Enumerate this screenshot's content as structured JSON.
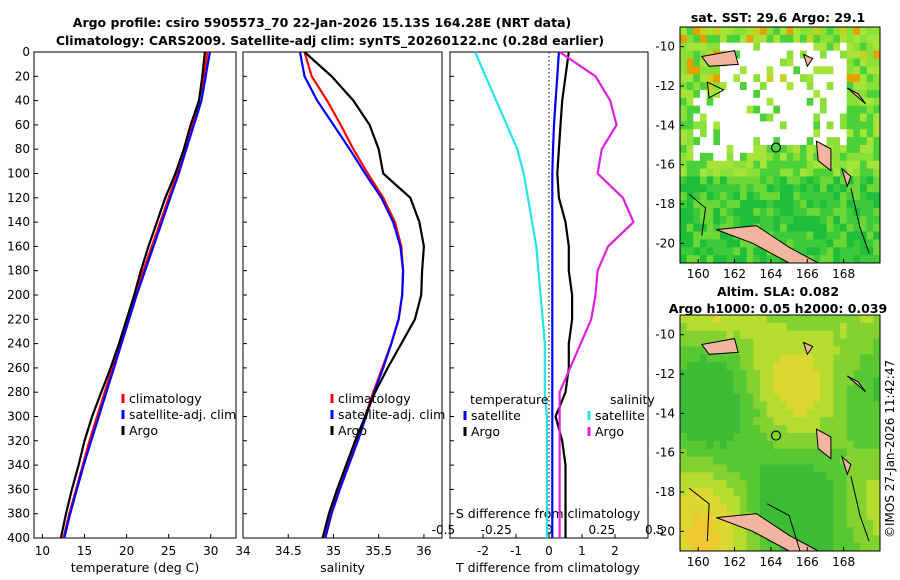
{
  "title": {
    "line1": "Argo profile: csiro 5905573_70 22-Jan-2026 15.13S 164.28E (NRT data)",
    "line2": "Climatology: CARS2009. Satellite-adj clim: synTS_20260122.nc (0.28d earlier)"
  },
  "map_titles": {
    "sst": "sat. SST: 29.6 Argo: 29.1",
    "sla1": "Altim. SLA: 0.082",
    "sla2": "Argo h1000: 0.05 h2000: 0.039"
  },
  "timestamp": "©IMOS 27-Jan-2026 11:42:47",
  "legend": {
    "climatology": "climatology",
    "satellite_adj": "satellite-adj. clim",
    "argo": "Argo",
    "temperature": "temperature",
    "salinity": "salinity",
    "satellite": "satellite"
  },
  "colors": {
    "climatology": "#ff0000",
    "satellite": "#0000ff",
    "argo": "#000000",
    "sal_satellite": "#22e5e5",
    "sal_argo": "#e020e0"
  },
  "chart_data": [
    {
      "type": "line",
      "name": "temperature",
      "xlabel": "temperature (deg C)",
      "ylabel": "",
      "xlim": [
        9,
        33
      ],
      "ylim": [
        400,
        0
      ],
      "xticks": [
        10,
        15,
        20,
        25,
        30
      ],
      "yticks": [
        0,
        20,
        40,
        60,
        80,
        100,
        120,
        140,
        160,
        180,
        200,
        220,
        240,
        260,
        280,
        300,
        320,
        340,
        360,
        380,
        400
      ],
      "depth": [
        0,
        20,
        40,
        60,
        80,
        100,
        120,
        140,
        160,
        180,
        200,
        220,
        240,
        260,
        280,
        300,
        320,
        340,
        360,
        380,
        400
      ],
      "series": [
        {
          "name": "climatology",
          "values": [
            29.6,
            29.2,
            28.6,
            27.8,
            26.9,
            26.0,
            25.0,
            24.0,
            23.0,
            22.0,
            21.0,
            20.1,
            19.2,
            18.3,
            17.4,
            16.5,
            15.6,
            14.8,
            14.0,
            13.2,
            12.5
          ]
        },
        {
          "name": "satellite-adj. clim",
          "values": [
            29.9,
            29.4,
            28.9,
            28.0,
            27.1,
            26.2,
            25.2,
            24.2,
            23.2,
            22.2,
            21.2,
            20.3,
            19.4,
            18.5,
            17.6,
            16.7,
            15.8,
            14.9,
            14.1,
            13.3,
            12.6
          ]
        },
        {
          "name": "Argo",
          "values": [
            29.3,
            29.0,
            28.6,
            27.6,
            26.8,
            25.8,
            24.6,
            23.6,
            22.6,
            21.7,
            20.9,
            20.0,
            19.1,
            18.1,
            17.0,
            15.9,
            15.0,
            14.3,
            13.5,
            12.8,
            12.2
          ]
        }
      ]
    },
    {
      "type": "line",
      "name": "salinity",
      "xlabel": "salinity",
      "xlim": [
        34,
        36.2
      ],
      "ylim": [
        400,
        0
      ],
      "xticks": [
        34,
        34.5,
        35,
        35.5,
        36
      ],
      "xticklabels": [
        "34",
        "34.5",
        "35",
        "35.5",
        "36"
      ],
      "depth": [
        0,
        20,
        40,
        60,
        80,
        100,
        120,
        140,
        160,
        180,
        200,
        220,
        240,
        260,
        280,
        300,
        320,
        340,
        360,
        380,
        400
      ],
      "series": [
        {
          "name": "climatology",
          "values": [
            34.68,
            34.76,
            34.93,
            35.08,
            35.22,
            35.38,
            35.55,
            35.68,
            35.75,
            35.77,
            35.76,
            35.72,
            35.64,
            35.54,
            35.44,
            35.35,
            35.26,
            35.16,
            35.06,
            34.97,
            34.9
          ]
        },
        {
          "name": "satellite-adj. clim",
          "values": [
            34.63,
            34.68,
            34.82,
            35.0,
            35.18,
            35.35,
            35.53,
            35.66,
            35.74,
            35.77,
            35.76,
            35.72,
            35.64,
            35.55,
            35.45,
            35.36,
            35.27,
            35.17,
            35.07,
            34.98,
            34.91
          ]
        },
        {
          "name": "Argo",
          "values": [
            34.68,
            34.98,
            35.22,
            35.4,
            35.5,
            35.55,
            35.85,
            35.95,
            36.0,
            35.98,
            35.97,
            35.9,
            35.75,
            35.6,
            35.46,
            35.35,
            35.24,
            35.14,
            35.04,
            34.95,
            34.88
          ]
        }
      ]
    },
    {
      "type": "line",
      "name": "difference",
      "xlabel": "T difference from climatology",
      "top_xlabel": "S difference from climatology",
      "xlim": [
        -3,
        3
      ],
      "ylim": [
        400,
        0
      ],
      "xticks": [
        -2,
        -1,
        0,
        1,
        2
      ],
      "top_xticks": [
        -0.5,
        -0.25,
        0,
        0.25,
        0.5
      ],
      "top_xticklabels": [
        "-0.5",
        "-0.25",
        "0",
        "0.25",
        "0.5"
      ],
      "depth": [
        0,
        20,
        40,
        60,
        80,
        100,
        120,
        140,
        160,
        180,
        200,
        220,
        240,
        260,
        280,
        300,
        320,
        340,
        360,
        380,
        400
      ],
      "series": [
        {
          "name": "T satellite",
          "values": [
            0.3,
            0.25,
            0.2,
            0.15,
            0.12,
            0.1,
            0.1,
            0.1,
            0.1,
            0.1,
            0.1,
            0.1,
            0.1,
            0.1,
            0.1,
            0.1,
            0.1,
            0.1,
            0.1,
            0.1,
            0.1
          ]
        },
        {
          "name": "T Argo",
          "values": [
            0.6,
            0.5,
            0.4,
            0.35,
            0.3,
            0.25,
            0.3,
            0.5,
            0.6,
            0.6,
            0.7,
            0.7,
            0.6,
            0.6,
            0.5,
            0.2,
            0.4,
            0.5,
            0.5,
            0.5,
            0.5
          ]
        },
        {
          "name": "S satellite",
          "values": [
            -0.35,
            -0.3,
            -0.25,
            -0.2,
            -0.15,
            -0.12,
            -0.1,
            -0.08,
            -0.06,
            -0.05,
            -0.04,
            -0.03,
            -0.02,
            -0.02,
            -0.02,
            -0.01,
            -0.01,
            -0.01,
            -0.01,
            -0.01,
            -0.01
          ]
        },
        {
          "name": "S Argo",
          "values": [
            0.05,
            0.22,
            0.29,
            0.32,
            0.25,
            0.23,
            0.35,
            0.4,
            0.28,
            0.23,
            0.22,
            0.2,
            0.15,
            0.1,
            0.05,
            0.05,
            0.05,
            0.05,
            0.05,
            0.05,
            0.05
          ]
        }
      ]
    },
    {
      "type": "heatmap",
      "name": "sat. SST map",
      "xticks": [
        160,
        162,
        164,
        166,
        168
      ],
      "yticks": [
        -10,
        -12,
        -14,
        -16,
        -18,
        -20
      ],
      "xlim": [
        159,
        170
      ],
      "ylim": [
        -21,
        -9
      ]
    },
    {
      "type": "heatmap",
      "name": "SLA map",
      "xticks": [
        160,
        162,
        164,
        166,
        168
      ],
      "yticks": [
        -10,
        -12,
        -14,
        -16,
        -18,
        -20
      ],
      "xlim": [
        159,
        170
      ],
      "ylim": [
        -21,
        -9
      ]
    }
  ]
}
